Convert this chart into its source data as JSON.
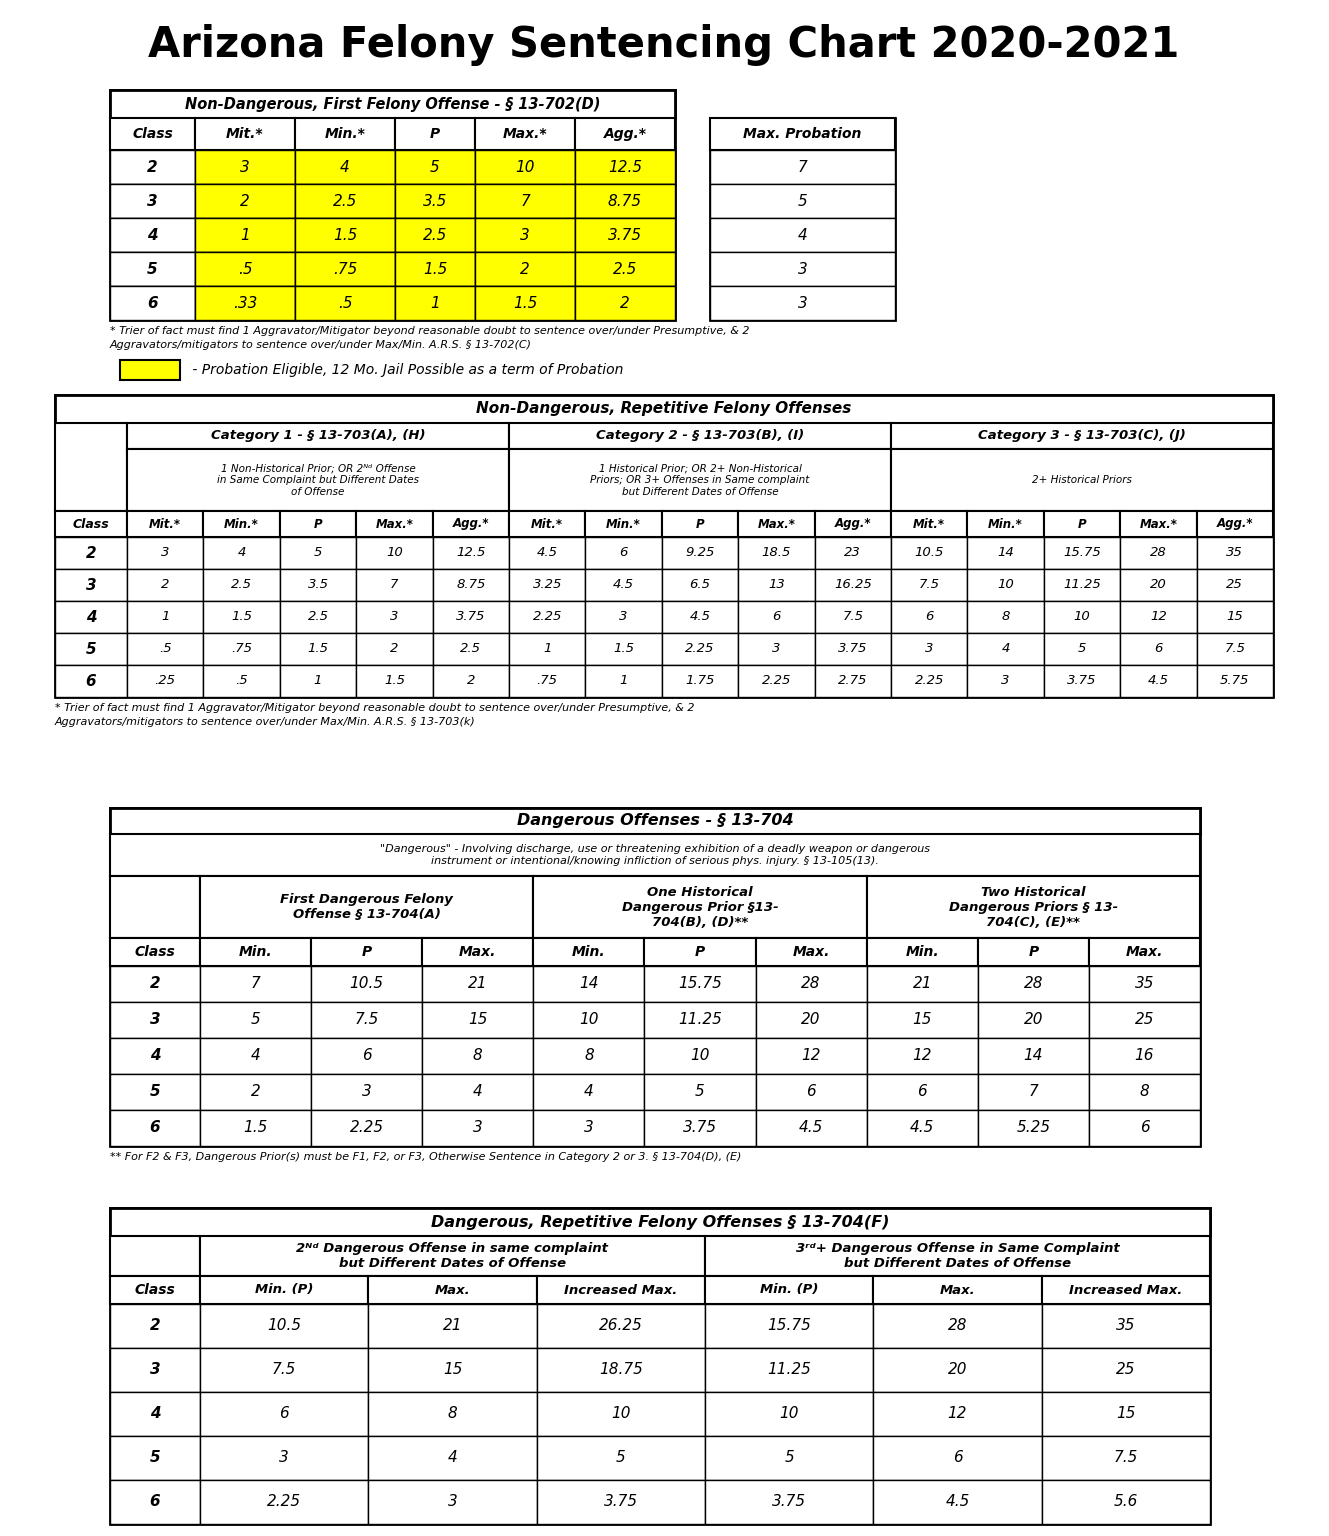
{
  "title": "Arizona Felony Sentencing Chart 2020-2021",
  "background_color": "#ffffff",
  "yellow": "#FFFF00",
  "table1": {
    "title": "Non-Dangerous, First Felony Offense - § 13-702(D)",
    "rows": [
      [
        "2",
        "3",
        "4",
        "5",
        "10",
        "12.5",
        "7"
      ],
      [
        "3",
        "2",
        "2.5",
        "3.5",
        "7",
        "8.75",
        "5"
      ],
      [
        "4",
        "1",
        "1.5",
        "2.5",
        "3",
        "3.75",
        "4"
      ],
      [
        "5",
        ".5",
        ".75",
        "1.5",
        "2",
        "2.5",
        "3"
      ],
      [
        "6",
        ".33",
        ".5",
        "1",
        "1.5",
        "2",
        "3"
      ]
    ],
    "footnote1": "* Trier of fact must find 1 Aggravator/Mitigator beyond reasonable doubt to sentence over/under Presumptive, & 2",
    "footnote2": "Aggravators/mitigators to sentence over/under Max/Min. A.R.S. § 13-702(C)",
    "legend": " - Probation Eligible, 12 Mo. Jail Possible as a term of Probation"
  },
  "table2": {
    "title": "Non-Dangerous, Repetitive Felony Offenses",
    "cat1_title": "Category 1 - § 13-703(A), (H)",
    "cat1_desc": "1 Non-Historical Prior; OR 2ᴺᵈ Offense\nin Same Complaint but Different Dates\nof Offense",
    "cat2_title": "Category 2 - § 13-703(B), (I)",
    "cat2_desc": "1 Historical Prior; OR 2+ Non-Historical\nPriors; OR 3+ Offenses in Same complaint\nbut Different Dates of Offense",
    "cat3_title": "Category 3 - § 13-703(C), (J)",
    "cat3_desc": "2+ Historical Priors",
    "rows": [
      [
        "2",
        "3",
        "4",
        "5",
        "10",
        "12.5",
        "4.5",
        "6",
        "9.25",
        "18.5",
        "23",
        "10.5",
        "14",
        "15.75",
        "28",
        "35"
      ],
      [
        "3",
        "2",
        "2.5",
        "3.5",
        "7",
        "8.75",
        "3.25",
        "4.5",
        "6.5",
        "13",
        "16.25",
        "7.5",
        "10",
        "11.25",
        "20",
        "25"
      ],
      [
        "4",
        "1",
        "1.5",
        "2.5",
        "3",
        "3.75",
        "2.25",
        "3",
        "4.5",
        "6",
        "7.5",
        "6",
        "8",
        "10",
        "12",
        "15"
      ],
      [
        "5",
        ".5",
        ".75",
        "1.5",
        "2",
        "2.5",
        "1",
        "1.5",
        "2.25",
        "3",
        "3.75",
        "3",
        "4",
        "5",
        "6",
        "7.5"
      ],
      [
        "6",
        ".25",
        ".5",
        "1",
        "1.5",
        "2",
        ".75",
        "1",
        "1.75",
        "2.25",
        "2.75",
        "2.25",
        "3",
        "3.75",
        "4.5",
        "5.75"
      ]
    ],
    "footnote1": "* Trier of fact must find 1 Aggravator/Mitigator beyond reasonable doubt to sentence over/under Presumptive, & 2",
    "footnote2": "Aggravators/mitigators to sentence over/under Max/Min. A.R.S. § 13-703(k)"
  },
  "table3": {
    "title": "Dangerous Offenses - § 13-704",
    "subtitle": "\"Dangerous\" - Involving discharge, use or threatening exhibition of a deadly weapon or dangerous\ninstrument or intentional/knowing infliction of serious phys. injury. § 13-105(13).",
    "col1_title": "First Dangerous Felony\nOffense § 13-704(A)",
    "col2_title": "One Historical\nDangerous Prior §13-\n704(B), (D)**",
    "col3_title": "Two Historical\nDangerous Priors § 13-\n704(C), (E)**",
    "rows": [
      [
        "2",
        "7",
        "10.5",
        "21",
        "14",
        "15.75",
        "28",
        "21",
        "28",
        "35"
      ],
      [
        "3",
        "5",
        "7.5",
        "15",
        "10",
        "11.25",
        "20",
        "15",
        "20",
        "25"
      ],
      [
        "4",
        "4",
        "6",
        "8",
        "8",
        "10",
        "12",
        "12",
        "14",
        "16"
      ],
      [
        "5",
        "2",
        "3",
        "4",
        "4",
        "5",
        "6",
        "6",
        "7",
        "8"
      ],
      [
        "6",
        "1.5",
        "2.25",
        "3",
        "3",
        "3.75",
        "4.5",
        "4.5",
        "5.25",
        "6"
      ]
    ],
    "footnote": "** For F2 & F3, Dangerous Prior(s) must be F1, F2, or F3, Otherwise Sentence in Category 2 or 3. § 13-704(D), (E)"
  },
  "table4": {
    "title": "Dangerous, Repetitive Felony Offenses § 13-704(F)",
    "col1_title": "2ᴺᵈ Dangerous Offense in same complaint\nbut Different Dates of Offense",
    "col2_title": "3ʳᵈ+ Dangerous Offense in Same Complaint\nbut Different Dates of Offense",
    "rows": [
      [
        "2",
        "10.5",
        "21",
        "26.25",
        "15.75",
        "28",
        "35"
      ],
      [
        "3",
        "7.5",
        "15",
        "18.75",
        "11.25",
        "20",
        "25"
      ],
      [
        "4",
        "6",
        "8",
        "10",
        "10",
        "12",
        "15"
      ],
      [
        "5",
        "3",
        "4",
        "5",
        "5",
        "6",
        "7.5"
      ],
      [
        "6",
        "2.25",
        "3",
        "3.75",
        "3.75",
        "4.5",
        "5.6"
      ]
    ]
  }
}
